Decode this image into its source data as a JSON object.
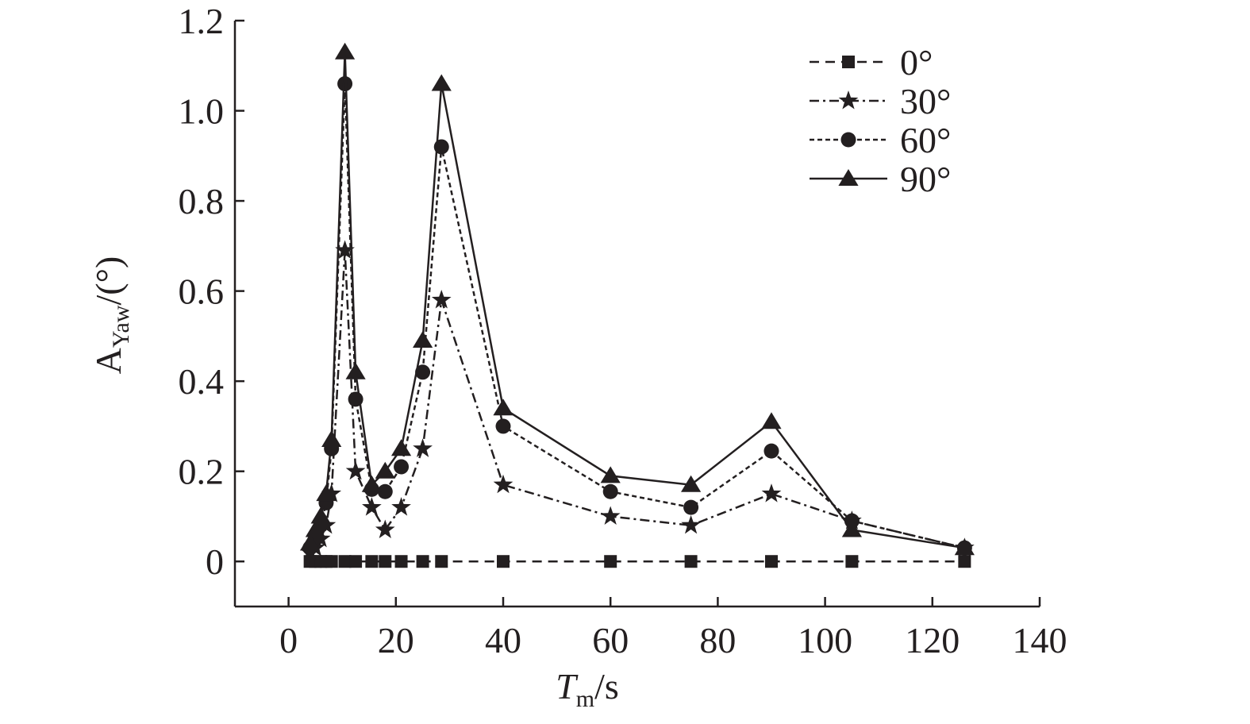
{
  "chart_data": {
    "type": "line",
    "xlabel": {
      "main": "T",
      "sub": "m",
      "suffix": "/s"
    },
    "ylabel": {
      "main": "A",
      "sub": "Yaw",
      "suffix": "/(°)"
    },
    "xlim": [
      -10,
      140
    ],
    "ylim": [
      -0.1,
      1.2
    ],
    "x_ticks": [
      0,
      20,
      40,
      60,
      80,
      100,
      120,
      140
    ],
    "y_ticks": [
      0,
      0.2,
      0.4,
      0.6,
      0.8,
      1.0,
      1.2
    ],
    "x_tick_labels": [
      "0",
      "20",
      "40",
      "60",
      "80",
      "100",
      "120",
      "140"
    ],
    "y_tick_labels": [
      "0",
      "0.2",
      "0.4",
      "0.6",
      "0.8",
      "1.0",
      "1.2"
    ],
    "grid": false,
    "legend_position": "top-right",
    "x": [
      4,
      5,
      6,
      7,
      8,
      10.5,
      12.5,
      15.5,
      18,
      21,
      25,
      28.5,
      40,
      60,
      75,
      90,
      105,
      126
    ],
    "series": [
      {
        "name": "0°",
        "marker": "square",
        "dash": "12,8",
        "color": "#231f20",
        "values": [
          0,
          0,
          0,
          0,
          0,
          0,
          0,
          0,
          0,
          0,
          0,
          0,
          0,
          0,
          0,
          0,
          0,
          0
        ]
      },
      {
        "name": "30°",
        "marker": "star",
        "dash": "12,5,3,5",
        "color": "#231f20",
        "values": [
          0.02,
          0.03,
          0.05,
          0.08,
          0.15,
          0.69,
          0.2,
          0.12,
          0.07,
          0.12,
          0.25,
          0.58,
          0.17,
          0.1,
          0.08,
          0.15,
          0.09,
          0.03
        ]
      },
      {
        "name": "60°",
        "marker": "circle",
        "dash": "6,4",
        "color": "#231f20",
        "values": [
          0.03,
          0.05,
          0.08,
          0.13,
          0.25,
          1.06,
          0.36,
          0.16,
          0.155,
          0.21,
          0.42,
          0.92,
          0.3,
          0.155,
          0.12,
          0.245,
          0.09,
          0.03
        ]
      },
      {
        "name": "90°",
        "marker": "triangle",
        "dash": "",
        "color": "#231f20",
        "values": [
          0.04,
          0.07,
          0.1,
          0.15,
          0.27,
          1.13,
          0.42,
          0.17,
          0.2,
          0.25,
          0.49,
          1.06,
          0.34,
          0.19,
          0.17,
          0.31,
          0.07,
          0.03
        ]
      }
    ]
  }
}
